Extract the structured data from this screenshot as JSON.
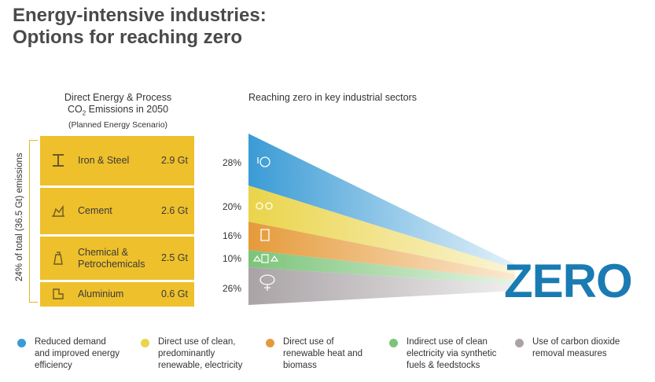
{
  "title": {
    "line1": "Energy-intensive industries:",
    "line2": "Options for reaching zero"
  },
  "left_header": {
    "line1": "Direct Energy & Process",
    "line2_pre": "CO",
    "line2_sub": "2",
    "line2_post": " Emissions in 2050",
    "line3": "(Planned Energy Scenario)"
  },
  "right_header": "Reaching zero in key industrial sectors",
  "vertical_label": "24% of total (36.5 Gt) emissions",
  "sectors": [
    {
      "name": "Iron & Steel",
      "value": "2.9 Gt",
      "icon": "steel-beam-icon"
    },
    {
      "name": "Cement",
      "value": "2.6 Gt",
      "icon": "cement-icon"
    },
    {
      "name": "Chemical &",
      "name2": "Petrochemicals",
      "value": "2.5 Gt",
      "icon": "chemical-icon"
    },
    {
      "name": "Aluminium",
      "value": "0.6 Gt",
      "icon": "aluminium-icon"
    }
  ],
  "shares": [
    "28%",
    "20%",
    "16%",
    "10%",
    "26%"
  ],
  "zero_label": "ZERO",
  "colors": {
    "blue": "#3a9bd5",
    "yellow": "#ead44a",
    "orange": "#e59a3a",
    "green": "#7cc47a",
    "gray": "#a9a3a6",
    "box": "#eec02c",
    "zero": "#1a7bb3"
  },
  "legend": [
    {
      "line1": "Reduced demand",
      "line2": "and improved energy",
      "line3": "efficiency",
      "color": "#3a9bd5"
    },
    {
      "line1": "Direct use of clean,",
      "line2": "predominantly",
      "line3": "renewable, electricity",
      "color": "#ead44a"
    },
    {
      "line1": "Direct use of",
      "line2": "renewable heat and",
      "line3": "biomass",
      "color": "#e59a3a"
    },
    {
      "line1": "Indirect use of clean",
      "line2": "electricity via synthetic",
      "line3": "fuels & feedstocks",
      "color": "#7cc47a"
    },
    {
      "line1": "Use of carbon dioxide",
      "line2": "removal measures",
      "line3": "",
      "color": "#a9a3a6"
    }
  ]
}
